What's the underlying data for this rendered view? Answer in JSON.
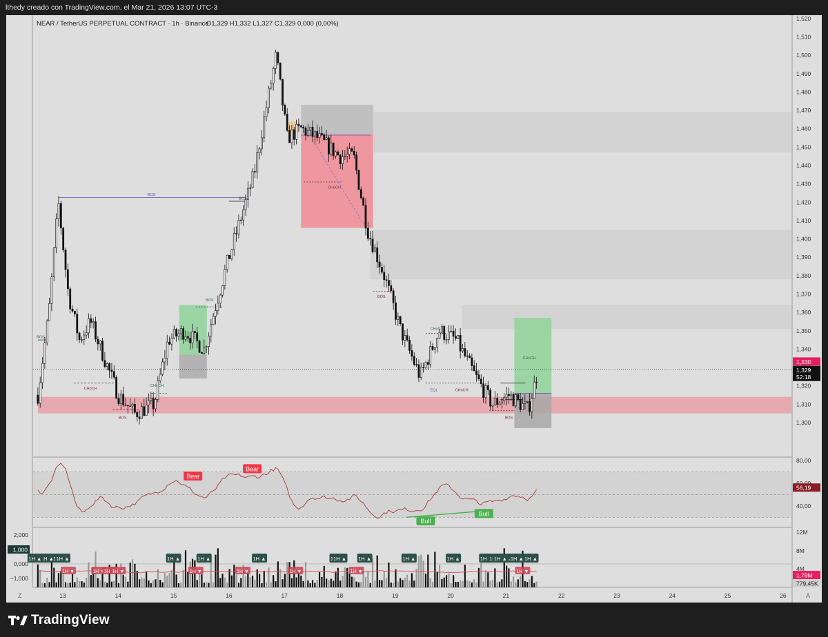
{
  "header": {
    "caption": "lthedy creado con TradingView.com, el Mar 21, 2026 13:07 UTC-3"
  },
  "legend": {
    "symbol": "NEAR / TetherUS PERPETUAL CONTRACT · 1h · Binance",
    "ohlc": "O1,329  H1,332  L1,327  C1,329  0,000 (0,00%)"
  },
  "footer": {
    "brand": "TradingView",
    "z_button": "Z",
    "a_button": "A"
  },
  "colors": {
    "bull": "#2b2b2b",
    "bear": "#111111",
    "supply_zone": "#e8a0a8",
    "order_block": "#f28b94",
    "green_zone": "#8fd39a",
    "rsi_line": "#a33a3a",
    "price_tag": "#e91e63",
    "label_green": "#4caf50",
    "label_red": "#f23645",
    "badge_dark": "#2d5049"
  },
  "chart_data": [
    {
      "type": "candlestick",
      "title": "NEAR / TetherUS PERPETUAL CONTRACT · 1h · Binance",
      "x_ticks": [
        "13",
        "14",
        "15",
        "16",
        "17",
        "18",
        "19",
        "20",
        "21",
        "22",
        "23",
        "24",
        "25",
        "26"
      ],
      "y_ticks": [
        "1,520",
        "1,510",
        "1,500",
        "1,490",
        "1,480",
        "1,470",
        "1,460",
        "1,450",
        "1,440",
        "1,430",
        "1,420",
        "1,410",
        "1,400",
        "1,390",
        "1,380",
        "1,370",
        "1,360",
        "1,350",
        "1,340",
        "1,330",
        "1,320",
        "1,310",
        "1,300"
      ],
      "ylim": [
        1.292,
        1.524
      ],
      "price_anchors": [
        {
          "day": 12.55,
          "price": 1.315
        },
        {
          "day": 12.75,
          "price": 1.36
        },
        {
          "day": 12.92,
          "price": 1.42
        },
        {
          "day": 13.1,
          "price": 1.37
        },
        {
          "day": 13.3,
          "price": 1.345
        },
        {
          "day": 13.5,
          "price": 1.355
        },
        {
          "day": 13.75,
          "price": 1.335
        },
        {
          "day": 14.0,
          "price": 1.315
        },
        {
          "day": 14.3,
          "price": 1.305
        },
        {
          "day": 14.65,
          "price": 1.31
        },
        {
          "day": 14.9,
          "price": 1.345
        },
        {
          "day": 15.2,
          "price": 1.35
        },
        {
          "day": 15.55,
          "price": 1.34
        },
        {
          "day": 15.95,
          "price": 1.385
        },
        {
          "day": 16.2,
          "price": 1.41
        },
        {
          "day": 16.45,
          "price": 1.435
        },
        {
          "day": 16.6,
          "price": 1.46
        },
        {
          "day": 16.85,
          "price": 1.5
        },
        {
          "day": 17.05,
          "price": 1.455
        },
        {
          "day": 17.3,
          "price": 1.46
        },
        {
          "day": 17.6,
          "price": 1.455
        },
        {
          "day": 18.0,
          "price": 1.445
        },
        {
          "day": 18.25,
          "price": 1.445
        },
        {
          "day": 18.5,
          "price": 1.405
        },
        {
          "day": 18.8,
          "price": 1.38
        },
        {
          "day": 19.1,
          "price": 1.35
        },
        {
          "day": 19.45,
          "price": 1.325
        },
        {
          "day": 19.8,
          "price": 1.35
        },
        {
          "day": 20.1,
          "price": 1.345
        },
        {
          "day": 20.45,
          "price": 1.325
        },
        {
          "day": 20.75,
          "price": 1.31
        },
        {
          "day": 21.05,
          "price": 1.315
        },
        {
          "day": 21.4,
          "price": 1.307
        },
        {
          "day": 21.58,
          "price": 1.329
        }
      ],
      "current_price": "1,329",
      "tags": [
        "1,330",
        "1,329",
        "52:18"
      ],
      "zones": [
        {
          "label": "supply",
          "top": 1.469,
          "bottom": 1.447,
          "from": 18.6
        },
        {
          "label": "supply",
          "top": 1.405,
          "bottom": 1.378,
          "from": 18.55
        },
        {
          "label": "supply",
          "top": 1.364,
          "bottom": 1.351,
          "from": 20.2
        },
        {
          "label": "demand",
          "top": 1.314,
          "bottom": 1.305,
          "from": 12.55
        },
        {
          "label": "order-block",
          "top": 1.457,
          "bottom": 1.406,
          "from": 17.3,
          "to": 18.6
        }
      ],
      "structure_labels": [
        "BOS",
        "BOS",
        "BOS",
        "BOS",
        "BOS",
        "BOS",
        "BOS",
        "CHoCH",
        "CHoCH",
        "CHoCH",
        "CHoCH",
        "CHoCH",
        "CHoCH",
        "EQL"
      ]
    },
    {
      "type": "line",
      "title": "",
      "y_ticks": [
        "80,00",
        "60,00",
        "40,00"
      ],
      "ylim": [
        27,
        82
      ],
      "current_value": "56,19",
      "labels": [
        "Bear",
        "Bear",
        "Bull",
        "Bull"
      ]
    },
    {
      "type": "bar",
      "title": "",
      "left_ticks": [
        "2,000",
        "1,000",
        "0,000",
        "−1,000"
      ],
      "right_ticks": [
        "12M",
        "8M",
        "4M"
      ],
      "tags": [
        "1,79M",
        "779,45K"
      ],
      "badges_up": [
        "1H ▲",
        "1H ▲",
        "1H ▲",
        "1H ▲",
        "1H ▲",
        "1H ▲",
        "1H ▲",
        "1H ▲",
        "1H ▲",
        "1H ▲",
        "1H ▲",
        "1H ▲",
        "1H ▲",
        "1H ▲",
        "1H ▲",
        "1H ▲",
        "1H ▲",
        "1H ▲"
      ],
      "badges_down": [
        "1H ▼",
        "1H ▼",
        "1H ▼",
        "1H ▼",
        "1H ▼",
        "1H ▼",
        "1H ▼",
        "1H ▼",
        "1H ▼"
      ]
    }
  ]
}
